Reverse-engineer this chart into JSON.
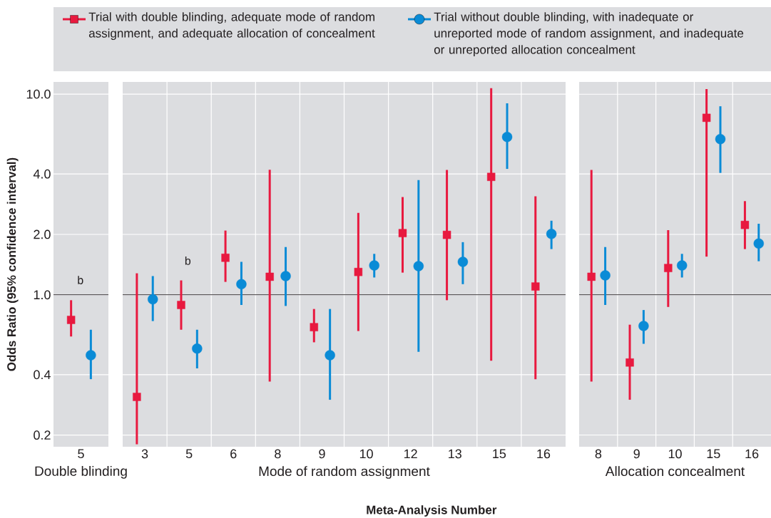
{
  "chart_data": [
    {
      "type": "scatter",
      "ylabel": "Odds Ratio (95% confidence interval)",
      "xlabel": "Double blinding",
      "categories": [
        "5"
      ],
      "log": "y",
      "ylim": [
        0.175,
        11.5
      ],
      "yticks": [
        {
          "value": 0.2,
          "label": "0.2"
        },
        {
          "value": 0.4,
          "label": "0.4"
        },
        {
          "value": 1,
          "label": "1.0"
        },
        {
          "value": 2,
          "label": "2.0"
        },
        {
          "value": 4,
          "label": "4.0"
        },
        {
          "value": 10,
          "label": "10.0"
        }
      ],
      "grid": true,
      "legend": "top",
      "ref_lines": [
        {
          "axis": "y",
          "value": 1,
          "color": "#231f20"
        }
      ],
      "annotations": [
        "b"
      ],
      "series": [
        {
          "name": "Trial with double blinding, adequate mode of random assignment, and adequate allocation of concealment",
          "color": "#e8193f",
          "marker": "square",
          "values": [
            0.75
          ],
          "errors": [
            [
              0.62,
              0.94
            ]
          ]
        },
        {
          "name": "Trial without double blinding, with inadequate or unreported mode of random assignment, and inadequate or unreported allocation concealment",
          "color": "#0a8bd6",
          "marker": "circle",
          "values": [
            0.5
          ],
          "errors": [
            [
              0.38,
              0.67
            ]
          ]
        }
      ]
    },
    {
      "type": "scatter",
      "xlabel": "Mode of random assignment",
      "categories": [
        "3",
        "5",
        "6",
        "8",
        "9",
        "10",
        "12",
        "13",
        "15",
        "16"
      ],
      "log": "y",
      "ylim": [
        0.175,
        11.5
      ],
      "yticks": [
        0.2,
        0.4,
        1,
        2,
        4,
        10
      ],
      "tick_labels": "x",
      "grid": true,
      "ref_lines": [
        {
          "axis": "y",
          "value": 1,
          "color": "#231f20"
        }
      ],
      "annotations": [
        "b",
        "Meta-Analysis Number"
      ],
      "series": [
        {
          "color": "#e8193f",
          "marker": "square",
          "values": [
            0.31,
            0.89,
            1.53,
            1.23,
            0.69,
            1.3,
            2.03,
            1.99,
            3.87,
            1.1
          ],
          "errors": [
            [
              0.18,
              1.28
            ],
            [
              0.67,
              1.18
            ],
            [
              1.16,
              2.09
            ],
            [
              0.37,
              4.2
            ],
            [
              0.58,
              0.85
            ],
            [
              0.66,
              2.56
            ],
            [
              1.29,
              3.07
            ],
            [
              0.94,
              4.19
            ],
            [
              0.47,
              10.7
            ],
            [
              0.38,
              3.1
            ]
          ]
        },
        {
          "color": "#0a8bd6",
          "marker": "circle",
          "values": [
            0.95,
            0.54,
            1.13,
            1.24,
            0.5,
            1.4,
            1.39,
            1.46,
            6.12,
            2.01
          ],
          "errors": [
            [
              0.74,
              1.24
            ],
            [
              0.43,
              0.67
            ],
            [
              0.89,
              1.46
            ],
            [
              0.88,
              1.73
            ],
            [
              0.3,
              0.85
            ],
            [
              1.22,
              1.6
            ],
            [
              0.52,
              3.73
            ],
            [
              1.13,
              1.83
            ],
            [
              4.24,
              9.0
            ],
            [
              1.69,
              2.34
            ]
          ]
        }
      ]
    },
    {
      "type": "scatter",
      "xlabel": "Allocation concealment",
      "categories": [
        "8",
        "9",
        "10",
        "15",
        "16"
      ],
      "log": "y",
      "ylim": [
        0.175,
        11.5
      ],
      "yticks": [
        0.2,
        0.4,
        1,
        2,
        4,
        10
      ],
      "tick_labels": "x",
      "grid": true,
      "ref_lines": [
        {
          "axis": "y",
          "value": 1,
          "color": "#231f20"
        }
      ],
      "series": [
        {
          "color": "#e8193f",
          "marker": "square",
          "values": [
            1.23,
            0.46,
            1.36,
            7.62,
            2.23
          ],
          "errors": [
            [
              0.37,
              4.19
            ],
            [
              0.3,
              0.71
            ],
            [
              0.87,
              2.1
            ],
            [
              1.55,
              10.6
            ],
            [
              1.69,
              2.93
            ]
          ]
        },
        {
          "color": "#0a8bd6",
          "marker": "circle",
          "values": [
            1.25,
            0.7,
            1.4,
            5.97,
            1.8
          ],
          "errors": [
            [
              0.89,
              1.73
            ],
            [
              0.57,
              0.84
            ],
            [
              1.22,
              1.6
            ],
            [
              4.05,
              8.7
            ],
            [
              1.47,
              2.26
            ]
          ]
        }
      ]
    }
  ]
}
